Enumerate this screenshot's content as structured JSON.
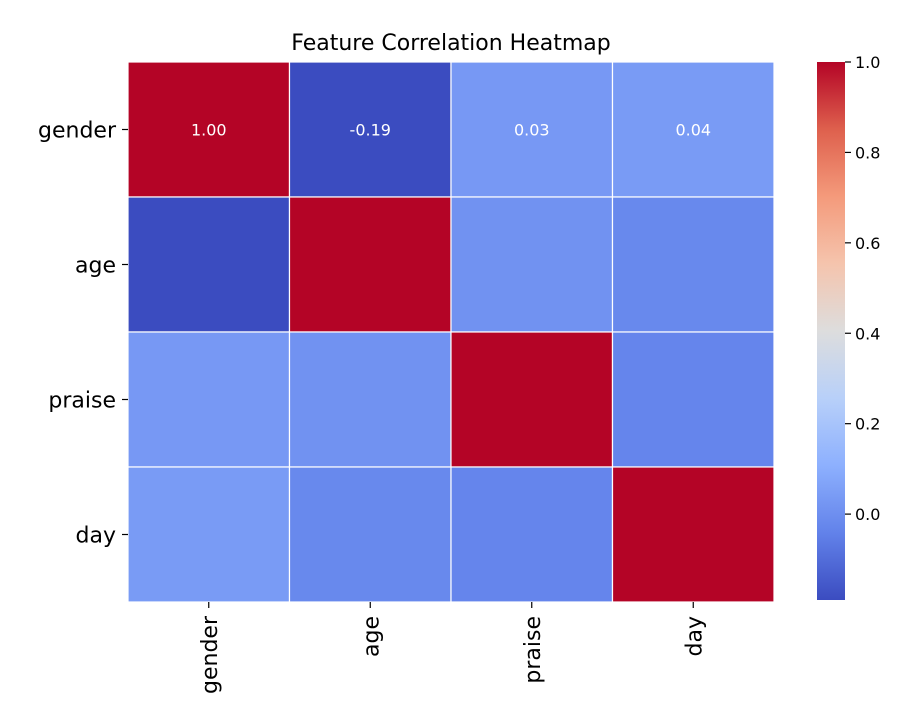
{
  "chart_data": {
    "type": "heatmap",
    "title": "Feature Correlation Heatmap",
    "row_labels": [
      "gender",
      "age",
      "praise",
      "day"
    ],
    "col_labels": [
      "gender",
      "age",
      "praise",
      "day"
    ],
    "values": [
      [
        1.0,
        -0.19,
        0.03,
        0.04
      ],
      [
        -0.19,
        1.0,
        0.01,
        -0.02
      ],
      [
        0.03,
        0.01,
        1.0,
        -0.03
      ],
      [
        0.04,
        -0.02,
        -0.03,
        1.0
      ]
    ],
    "annotations": [
      [
        "1.00",
        "-0.19",
        "0.03",
        "0.04"
      ],
      [
        "",
        "",
        "",
        ""
      ],
      [
        "",
        "",
        "",
        ""
      ],
      [
        "",
        "",
        "",
        ""
      ]
    ],
    "colormap": "coolwarm",
    "colorbar": {
      "vmin": -0.19,
      "vmax": 1.0,
      "ticks": [
        0.0,
        0.2,
        0.4,
        0.6,
        0.8,
        1.0
      ],
      "tick_labels": [
        "0.0",
        "0.2",
        "0.4",
        "0.6",
        "0.8",
        "1.0"
      ]
    },
    "grid": false
  }
}
